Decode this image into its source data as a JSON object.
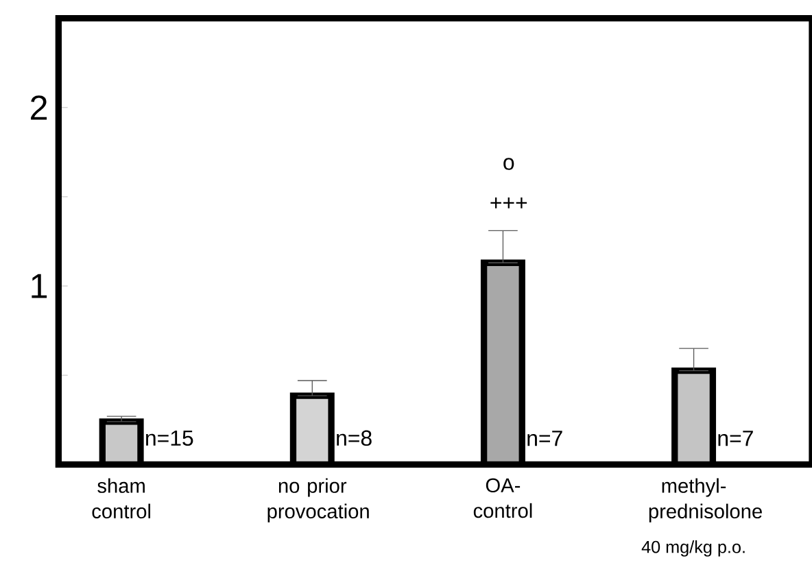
{
  "chart_data": {
    "type": "bar",
    "categories": [
      "sham control",
      "no prior provocation",
      "OA-control",
      "methyl-prednisolone"
    ],
    "values": [
      0.24,
      0.385,
      1.13,
      0.525
    ],
    "errors": [
      [
        0.24,
        0.27
      ],
      [
        0.385,
        0.47
      ],
      [
        1.13,
        1.31
      ],
      [
        0.525,
        0.65
      ]
    ],
    "colors": [
      "#c8c8c8",
      "#d4d4d4",
      "#a8a8a8",
      "#c4c4c4"
    ],
    "ylim": [
      0,
      2.5
    ],
    "yticks": [
      {
        "value": 0.5,
        "label": null
      },
      1,
      {
        "value": 1.5,
        "label": null
      },
      2
    ],
    "annotations": [
      "n=15",
      "n=8",
      "n=7",
      "n=7",
      "+++",
      "o",
      "40 mg/kg p.o."
    ]
  }
}
